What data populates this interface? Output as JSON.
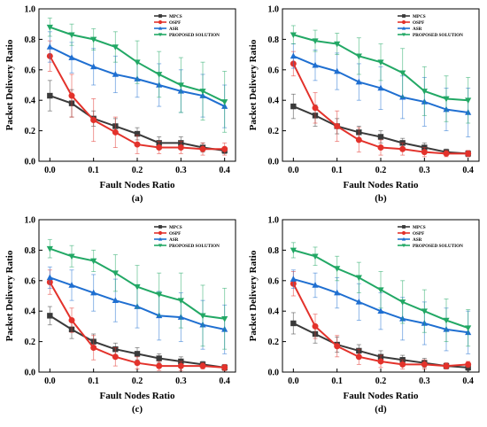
{
  "figure": {
    "series_colors": {
      "MPCS": "#3a3a3a",
      "OSPF": "#e3322b",
      "ASR": "#1f6fd1",
      "PROPOSED SOLUTION": "#22a865"
    }
  },
  "chart_data": [
    {
      "type": "line",
      "panel_label": "(a)",
      "xlabel": "Fault Nodes Ratio",
      "ylabel": "Packet Delivery Ratio",
      "xlim": [
        -0.025,
        0.425
      ],
      "ylim": [
        0.0,
        1.0
      ],
      "x_ticks": [
        "0.0",
        "0.1",
        "0.2",
        "0.3",
        "0.4"
      ],
      "y_ticks": [
        "0.0",
        "0.2",
        "0.4",
        "0.6",
        "0.8",
        "1.0"
      ],
      "legend_position": "top-right",
      "x": [
        0.0,
        0.05,
        0.1,
        0.15,
        0.2,
        0.25,
        0.3,
        0.35,
        0.4
      ],
      "series": [
        {
          "name": "MPCS",
          "color": "#3a3a3a",
          "marker": "square",
          "values": [
            0.43,
            0.38,
            0.28,
            0.23,
            0.18,
            0.12,
            0.12,
            0.09,
            0.07
          ],
          "errors": [
            0.1,
            0.09,
            0.05,
            0.05,
            0.04,
            0.04,
            0.04,
            0.03,
            0.02
          ]
        },
        {
          "name": "OSPF",
          "color": "#e3322b",
          "marker": "circle",
          "values": [
            0.69,
            0.43,
            0.27,
            0.19,
            0.11,
            0.09,
            0.09,
            0.08,
            0.08
          ],
          "errors": [
            0.1,
            0.14,
            0.14,
            0.1,
            0.06,
            0.04,
            0.04,
            0.04,
            0.04
          ]
        },
        {
          "name": "ASR",
          "color": "#1f6fd1",
          "marker": "triangle-up",
          "values": [
            0.75,
            0.68,
            0.62,
            0.57,
            0.54,
            0.5,
            0.46,
            0.43,
            0.36
          ],
          "errors": [
            0.1,
            0.1,
            0.12,
            0.12,
            0.12,
            0.14,
            0.14,
            0.14,
            0.14
          ]
        },
        {
          "name": "PROPOSED SOLUTION",
          "color": "#22a865",
          "marker": "triangle-down",
          "values": [
            0.88,
            0.83,
            0.8,
            0.75,
            0.65,
            0.57,
            0.5,
            0.46,
            0.39
          ],
          "errors": [
            0.06,
            0.07,
            0.07,
            0.1,
            0.14,
            0.15,
            0.18,
            0.19,
            0.2
          ]
        }
      ]
    },
    {
      "type": "line",
      "panel_label": "(b)",
      "xlabel": "Fault Nodes Ratio",
      "ylabel": "Packet Delivery Ratio",
      "xlim": [
        -0.025,
        0.425
      ],
      "ylim": [
        0.0,
        1.0
      ],
      "x_ticks": [
        "0.0",
        "0.1",
        "0.2",
        "0.3",
        "0.4"
      ],
      "y_ticks": [
        "0.0",
        "0.2",
        "0.4",
        "0.6",
        "0.8",
        "1.0"
      ],
      "legend_position": "top-right",
      "x": [
        0.0,
        0.05,
        0.1,
        0.15,
        0.2,
        0.25,
        0.3,
        0.35,
        0.4
      ],
      "series": [
        {
          "name": "MPCS",
          "color": "#3a3a3a",
          "marker": "square",
          "values": [
            0.36,
            0.3,
            0.23,
            0.19,
            0.16,
            0.12,
            0.09,
            0.06,
            0.05
          ],
          "errors": [
            0.08,
            0.07,
            0.05,
            0.04,
            0.04,
            0.03,
            0.03,
            0.02,
            0.02
          ]
        },
        {
          "name": "OSPF",
          "color": "#e3322b",
          "marker": "circle",
          "values": [
            0.64,
            0.35,
            0.23,
            0.14,
            0.09,
            0.08,
            0.06,
            0.05,
            0.05
          ],
          "errors": [
            0.08,
            0.1,
            0.1,
            0.08,
            0.05,
            0.04,
            0.03,
            0.02,
            0.02
          ]
        },
        {
          "name": "ASR",
          "color": "#1f6fd1",
          "marker": "triangle-up",
          "values": [
            0.69,
            0.63,
            0.59,
            0.52,
            0.48,
            0.42,
            0.39,
            0.34,
            0.32
          ],
          "errors": [
            0.08,
            0.1,
            0.12,
            0.12,
            0.14,
            0.14,
            0.16,
            0.14,
            0.16
          ]
        },
        {
          "name": "PROPOSED SOLUTION",
          "color": "#22a865",
          "marker": "triangle-down",
          "values": [
            0.83,
            0.79,
            0.77,
            0.69,
            0.65,
            0.58,
            0.46,
            0.41,
            0.4
          ],
          "errors": [
            0.06,
            0.07,
            0.07,
            0.12,
            0.12,
            0.16,
            0.16,
            0.15,
            0.15
          ]
        }
      ]
    },
    {
      "type": "line",
      "panel_label": "(c)",
      "xlabel": "Fault Nodes Ratio",
      "ylabel": "Packet Delivery Ratio",
      "xlim": [
        -0.025,
        0.425
      ],
      "ylim": [
        0.0,
        1.0
      ],
      "x_ticks": [
        "0.0",
        "0.1",
        "0.2",
        "0.3",
        "0.4"
      ],
      "y_ticks": [
        "0.0",
        "0.2",
        "0.4",
        "0.6",
        "0.8",
        "1.0"
      ],
      "legend_position": "top-right",
      "x": [
        0.0,
        0.05,
        0.1,
        0.15,
        0.2,
        0.25,
        0.3,
        0.35,
        0.4
      ],
      "series": [
        {
          "name": "MPCS",
          "color": "#3a3a3a",
          "marker": "square",
          "values": [
            0.37,
            0.28,
            0.2,
            0.15,
            0.12,
            0.09,
            0.07,
            0.05,
            0.03
          ],
          "errors": [
            0.06,
            0.06,
            0.05,
            0.04,
            0.04,
            0.03,
            0.03,
            0.02,
            0.02
          ]
        },
        {
          "name": "OSPF",
          "color": "#e3322b",
          "marker": "circle",
          "values": [
            0.59,
            0.34,
            0.16,
            0.1,
            0.06,
            0.04,
            0.04,
            0.04,
            0.03
          ],
          "errors": [
            0.08,
            0.08,
            0.08,
            0.06,
            0.04,
            0.03,
            0.03,
            0.02,
            0.02
          ]
        },
        {
          "name": "ASR",
          "color": "#1f6fd1",
          "marker": "triangle-up",
          "values": [
            0.62,
            0.57,
            0.52,
            0.47,
            0.43,
            0.37,
            0.36,
            0.31,
            0.28
          ],
          "errors": [
            0.07,
            0.1,
            0.12,
            0.14,
            0.14,
            0.16,
            0.16,
            0.16,
            0.16
          ]
        },
        {
          "name": "PROPOSED SOLUTION",
          "color": "#22a865",
          "marker": "triangle-down",
          "values": [
            0.81,
            0.76,
            0.73,
            0.65,
            0.56,
            0.51,
            0.47,
            0.37,
            0.35
          ],
          "errors": [
            0.06,
            0.07,
            0.07,
            0.12,
            0.14,
            0.14,
            0.18,
            0.2,
            0.2
          ]
        }
      ]
    },
    {
      "type": "line",
      "panel_label": "(d)",
      "xlabel": "Fault Nodes Ratio",
      "ylabel": "Packet Delivery Ratio",
      "xlim": [
        -0.025,
        0.425
      ],
      "ylim": [
        0.0,
        1.0
      ],
      "x_ticks": [
        "0.0",
        "0.1",
        "0.2",
        "0.3",
        "0.4"
      ],
      "y_ticks": [
        "0.0",
        "0.2",
        "0.4",
        "0.6",
        "0.8",
        "1.0"
      ],
      "legend_position": "top-right",
      "x": [
        0.0,
        0.05,
        0.1,
        0.15,
        0.2,
        0.25,
        0.3,
        0.35,
        0.4
      ],
      "series": [
        {
          "name": "MPCS",
          "color": "#3a3a3a",
          "marker": "square",
          "values": [
            0.32,
            0.25,
            0.18,
            0.14,
            0.1,
            0.08,
            0.06,
            0.04,
            0.03
          ],
          "errors": [
            0.07,
            0.06,
            0.05,
            0.04,
            0.04,
            0.03,
            0.03,
            0.02,
            0.02
          ]
        },
        {
          "name": "OSPF",
          "color": "#e3322b",
          "marker": "circle",
          "values": [
            0.58,
            0.3,
            0.17,
            0.1,
            0.07,
            0.05,
            0.05,
            0.04,
            0.05
          ],
          "errors": [
            0.08,
            0.08,
            0.07,
            0.05,
            0.04,
            0.03,
            0.03,
            0.02,
            0.02
          ]
        },
        {
          "name": "ASR",
          "color": "#1f6fd1",
          "marker": "triangle-up",
          "values": [
            0.61,
            0.57,
            0.52,
            0.46,
            0.4,
            0.35,
            0.32,
            0.28,
            0.26
          ],
          "errors": [
            0.06,
            0.08,
            0.1,
            0.12,
            0.12,
            0.14,
            0.14,
            0.14,
            0.14
          ]
        },
        {
          "name": "PROPOSED SOLUTION",
          "color": "#22a865",
          "marker": "triangle-down",
          "values": [
            0.8,
            0.76,
            0.68,
            0.62,
            0.54,
            0.46,
            0.4,
            0.34,
            0.29
          ],
          "errors": [
            0.05,
            0.06,
            0.08,
            0.1,
            0.12,
            0.14,
            0.14,
            0.14,
            0.12
          ]
        }
      ]
    }
  ]
}
